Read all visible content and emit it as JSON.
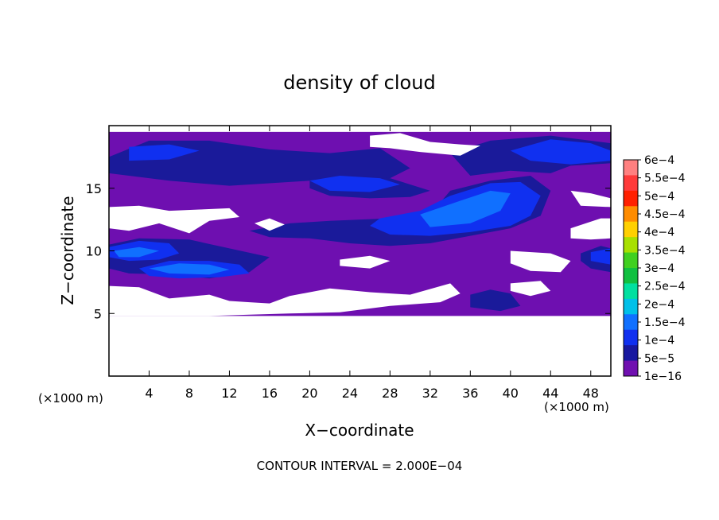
{
  "chart_data": {
    "type": "heatmap",
    "title": "density of cloud",
    "xlabel": "X−coordinate",
    "ylabel": "Z−coordinate",
    "x_unit_left": "(×1000 m)",
    "x_unit_right": "(×1000 m)",
    "footer": "CONTOUR INTERVAL = 2.000E−04",
    "x_ticks": [
      4,
      8,
      12,
      16,
      20,
      24,
      28,
      32,
      36,
      40,
      44,
      48
    ],
    "x_tick_labels": [
      "4",
      "8",
      "12",
      "16",
      "20",
      "24",
      "28",
      "32",
      "36",
      "40",
      "44",
      "48"
    ],
    "y_ticks": [
      5,
      10,
      15
    ],
    "y_tick_labels": [
      "5",
      "10",
      "15"
    ],
    "xlim": [
      0,
      50
    ],
    "ylim": [
      0,
      20
    ],
    "colorbar": {
      "labels": [
        "6e−4",
        "5.5e−4",
        "5e−4",
        "4.5e−4",
        "4e−4",
        "3.5e−4",
        "3e−4",
        "2.5e−4",
        "2e−4",
        "1.5e−4",
        "1e−4",
        "5e−5",
        "1e−16"
      ],
      "colors": [
        "#ff8080",
        "#ff3a3a",
        "#ff2000",
        "#ff8c00",
        "#ffd000",
        "#a8e000",
        "#40d020",
        "#10c040",
        "#00e0a0",
        "#00c0e8",
        "#1070ff",
        "#1030f0",
        "#1818a0",
        "#7010b0"
      ]
    },
    "background_color": "#6e0fb0",
    "regions": [
      {
        "level": 0,
        "points": [
          [
            0,
            4.8
          ],
          [
            50,
            4.8
          ],
          [
            50,
            19.5
          ],
          [
            0,
            19.5
          ]
        ]
      },
      {
        "level": 1,
        "points": [
          [
            0,
            17.5
          ],
          [
            4,
            18.8
          ],
          [
            10,
            18.8
          ],
          [
            16,
            18.1
          ],
          [
            22,
            17.8
          ],
          [
            27,
            18.2
          ],
          [
            30,
            16.6
          ],
          [
            28,
            15.8
          ],
          [
            20,
            15.6
          ],
          [
            12,
            15.2
          ],
          [
            6,
            15.6
          ],
          [
            0,
            16.2
          ]
        ]
      },
      {
        "level": 1,
        "points": [
          [
            36,
            16
          ],
          [
            40,
            16.4
          ],
          [
            44,
            16.2
          ],
          [
            46,
            16.8
          ],
          [
            50,
            17
          ],
          [
            50,
            18.6
          ],
          [
            44,
            19.2
          ],
          [
            38,
            18.8
          ],
          [
            34,
            17.8
          ]
        ]
      },
      {
        "level": 1,
        "points": [
          [
            0,
            10.5
          ],
          [
            3,
            11
          ],
          [
            8,
            10.9
          ],
          [
            12,
            10.2
          ],
          [
            16,
            9.5
          ],
          [
            14,
            8.3
          ],
          [
            10,
            7.8
          ],
          [
            6,
            8.1
          ],
          [
            2,
            8.2
          ],
          [
            0,
            8.6
          ]
        ]
      },
      {
        "level": 1,
        "points": [
          [
            14,
            11.6
          ],
          [
            18,
            12.2
          ],
          [
            22,
            12.4
          ],
          [
            28,
            12.6
          ],
          [
            32,
            12.9
          ],
          [
            34,
            14.8
          ],
          [
            38,
            15.6
          ],
          [
            42,
            16
          ],
          [
            44,
            14.8
          ],
          [
            43,
            12.8
          ],
          [
            40,
            11.8
          ],
          [
            36,
            11.2
          ],
          [
            32,
            10.6
          ],
          [
            28,
            10.4
          ],
          [
            24,
            10.6
          ],
          [
            20,
            11
          ],
          [
            16,
            11.1
          ]
        ]
      },
      {
        "level": 1,
        "points": [
          [
            20,
            15.8
          ],
          [
            24,
            16.2
          ],
          [
            28,
            15.8
          ],
          [
            32,
            14.8
          ],
          [
            30,
            14.3
          ],
          [
            26,
            14.2
          ],
          [
            22,
            14.4
          ],
          [
            20,
            15
          ]
        ]
      },
      {
        "level": 1,
        "points": [
          [
            36,
            6.5
          ],
          [
            38,
            6.9
          ],
          [
            40,
            6.6
          ],
          [
            41,
            5.6
          ],
          [
            39,
            5.2
          ],
          [
            36,
            5.5
          ]
        ]
      },
      {
        "level": 1,
        "points": [
          [
            47,
            9.8
          ],
          [
            49,
            10.4
          ],
          [
            50,
            10.2
          ],
          [
            50,
            8.3
          ],
          [
            48,
            8.6
          ],
          [
            47,
            9.2
          ]
        ]
      },
      {
        "level": 2,
        "points": [
          [
            2,
            18.3
          ],
          [
            6,
            18.5
          ],
          [
            9,
            18
          ],
          [
            6,
            17.3
          ],
          [
            2,
            17.2
          ]
        ]
      },
      {
        "level": 2,
        "points": [
          [
            40,
            18
          ],
          [
            44,
            18.9
          ],
          [
            48,
            18.6
          ],
          [
            50,
            18
          ],
          [
            50,
            17.2
          ],
          [
            46,
            16.9
          ],
          [
            42,
            17.2
          ]
        ]
      },
      {
        "level": 2,
        "points": [
          [
            20,
            15.6
          ],
          [
            23,
            16
          ],
          [
            27,
            15.8
          ],
          [
            29,
            15.3
          ],
          [
            26,
            14.7
          ],
          [
            22,
            14.8
          ]
        ]
      },
      {
        "level": 2,
        "points": [
          [
            27,
            12.6
          ],
          [
            31,
            13.2
          ],
          [
            34,
            14.4
          ],
          [
            38,
            15.4
          ],
          [
            41,
            15.5
          ],
          [
            43,
            14.4
          ],
          [
            42,
            12.8
          ],
          [
            40,
            12
          ],
          [
            36,
            11.5
          ],
          [
            32,
            11.2
          ],
          [
            28,
            11.3
          ],
          [
            26,
            12
          ]
        ]
      },
      {
        "level": 2,
        "points": [
          [
            0,
            10.3
          ],
          [
            3,
            10.8
          ],
          [
            6,
            10.6
          ],
          [
            7,
            9.8
          ],
          [
            5,
            9.3
          ],
          [
            2,
            9.2
          ],
          [
            0,
            9.5
          ]
        ]
      },
      {
        "level": 2,
        "points": [
          [
            3,
            8.6
          ],
          [
            6,
            9.2
          ],
          [
            10,
            9.2
          ],
          [
            13,
            8.9
          ],
          [
            14,
            8.2
          ],
          [
            11,
            7.9
          ],
          [
            7,
            7.8
          ],
          [
            4,
            8
          ]
        ]
      },
      {
        "level": 2,
        "points": [
          [
            48,
            9.9
          ],
          [
            50,
            10.2
          ],
          [
            50,
            8.9
          ],
          [
            48,
            9.2
          ]
        ]
      },
      {
        "level": 3,
        "points": [
          [
            4,
            8.6
          ],
          [
            7,
            9
          ],
          [
            10,
            8.9
          ],
          [
            12,
            8.5
          ],
          [
            10,
            8.1
          ],
          [
            6,
            8.2
          ]
        ]
      },
      {
        "level": 3,
        "points": [
          [
            31,
            12.9
          ],
          [
            35,
            14
          ],
          [
            38,
            14.8
          ],
          [
            40,
            14.6
          ],
          [
            39,
            13.2
          ],
          [
            36,
            12.2
          ],
          [
            32,
            11.9
          ]
        ]
      },
      {
        "level": 3,
        "points": [
          [
            0.5,
            10
          ],
          [
            3,
            10.3
          ],
          [
            5,
            10
          ],
          [
            3,
            9.5
          ],
          [
            1,
            9.5
          ]
        ]
      }
    ],
    "gaps": [
      [
        [
          0,
          13.5
        ],
        [
          3,
          13.6
        ],
        [
          6,
          13.2
        ],
        [
          9,
          13.3
        ],
        [
          12,
          13.4
        ],
        [
          13,
          12.7
        ],
        [
          10,
          12.4
        ],
        [
          8,
          11.4
        ],
        [
          5,
          12.2
        ],
        [
          2,
          11.6
        ],
        [
          0,
          11.8
        ]
      ],
      [
        [
          14.5,
          12.2
        ],
        [
          16,
          12.6
        ],
        [
          17.5,
          12.1
        ],
        [
          16,
          11.6
        ]
      ],
      [
        [
          26,
          19.2
        ],
        [
          29,
          19.4
        ],
        [
          32,
          18.7
        ],
        [
          35,
          18.5
        ],
        [
          37,
          18.4
        ],
        [
          35,
          17.6
        ],
        [
          31,
          17.9
        ],
        [
          28,
          18.2
        ],
        [
          26,
          18.3
        ]
      ],
      [
        [
          0,
          7.2
        ],
        [
          3,
          7.1
        ],
        [
          6,
          6.2
        ],
        [
          10,
          6.5
        ],
        [
          12,
          6
        ],
        [
          14,
          5.9
        ],
        [
          16,
          5.8
        ],
        [
          18,
          6.4
        ],
        [
          22,
          7
        ],
        [
          26,
          6.7
        ],
        [
          30,
          6.5
        ],
        [
          34,
          7.4
        ],
        [
          35,
          6.6
        ],
        [
          33,
          5.9
        ],
        [
          28,
          5.6
        ],
        [
          23,
          5.1
        ],
        [
          18,
          5
        ],
        [
          14,
          4.9
        ],
        [
          10,
          4.8
        ],
        [
          6,
          4.8
        ],
        [
          3,
          4.8
        ],
        [
          0,
          4.8
        ]
      ],
      [
        [
          23,
          9.3
        ],
        [
          26,
          9.6
        ],
        [
          28,
          9.2
        ],
        [
          26,
          8.6
        ],
        [
          23,
          8.8
        ]
      ],
      [
        [
          40,
          7.4
        ],
        [
          43,
          7.6
        ],
        [
          44,
          6.8
        ],
        [
          42,
          6.4
        ],
        [
          40,
          6.8
        ]
      ],
      [
        [
          46,
          11.8
        ],
        [
          49,
          12.6
        ],
        [
          50,
          12.6
        ],
        [
          50,
          11
        ],
        [
          48,
          10.9
        ],
        [
          46,
          11
        ]
      ],
      [
        [
          46,
          14.8
        ],
        [
          48,
          14.6
        ],
        [
          50,
          14.2
        ],
        [
          50,
          13.5
        ],
        [
          47,
          13.6
        ]
      ],
      [
        [
          40,
          10
        ],
        [
          44,
          9.8
        ],
        [
          46,
          9.2
        ],
        [
          45,
          8.3
        ],
        [
          42,
          8.4
        ],
        [
          40,
          9
        ]
      ]
    ]
  }
}
